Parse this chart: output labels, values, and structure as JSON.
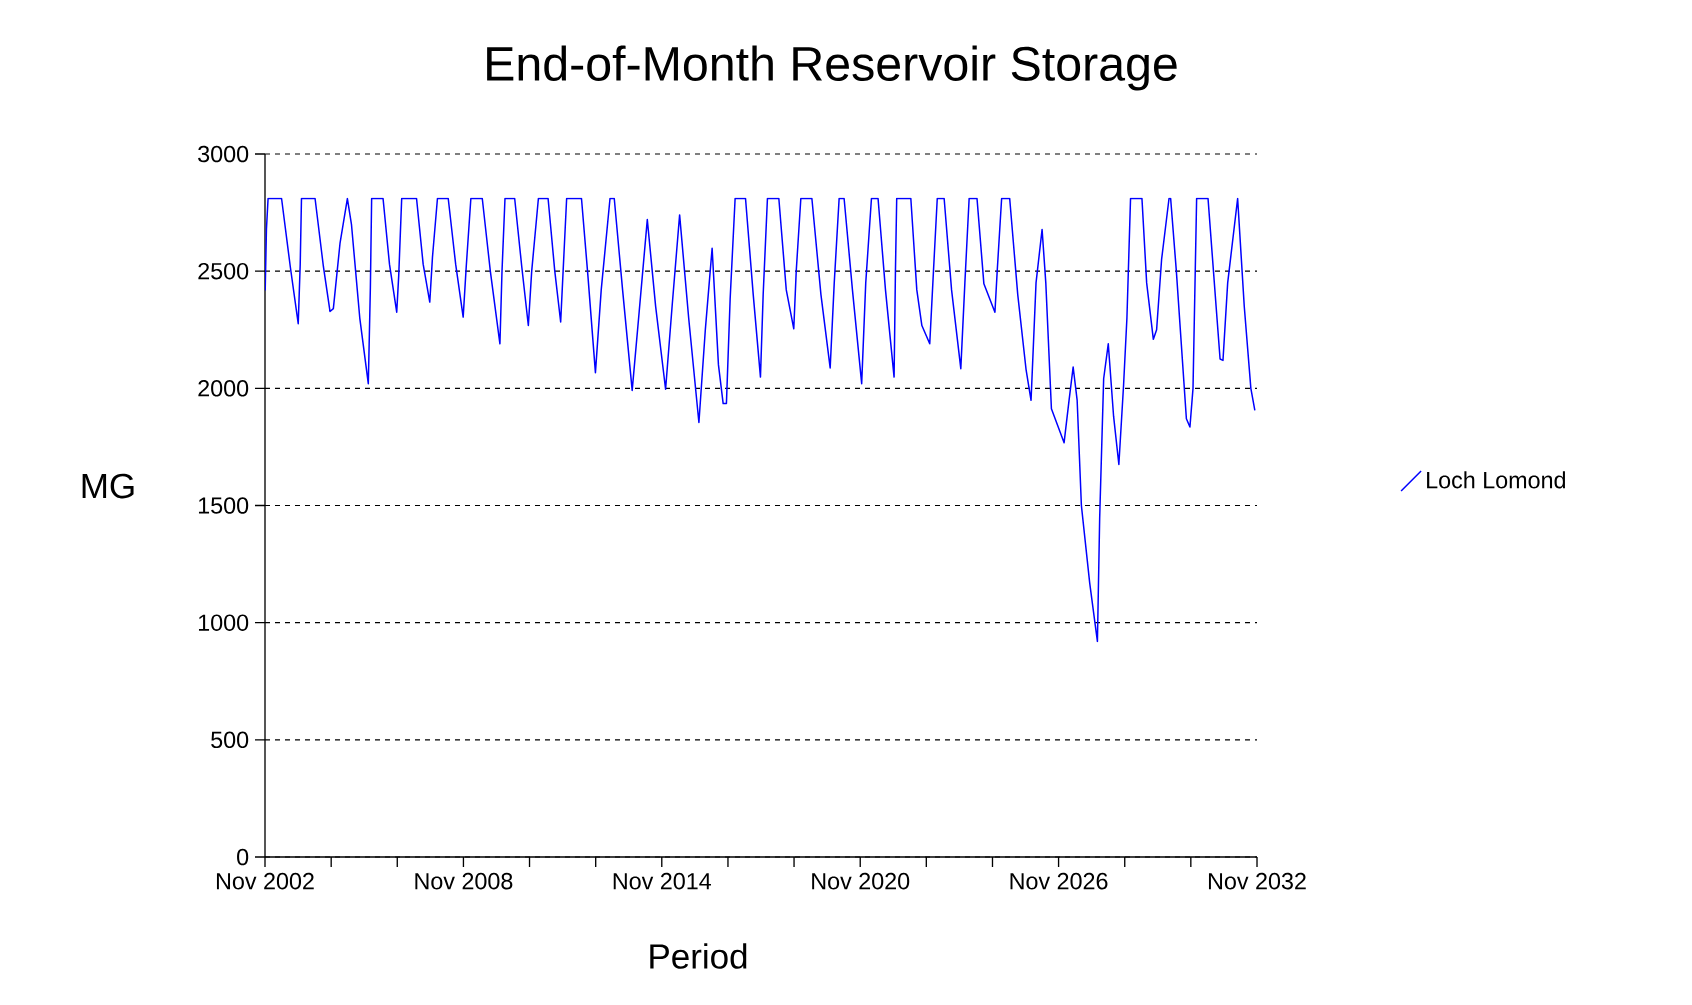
{
  "chart_data": {
    "type": "line",
    "title": "End-of-Month Reservoir Storage",
    "xlabel": "Period",
    "ylabel": "MG",
    "xlim": [
      "2002-11",
      "2032-11"
    ],
    "ylim": [
      0,
      3000
    ],
    "xticks": [
      {
        "value": "2002-11",
        "label": "Nov 2002"
      },
      {
        "value": "2004-11",
        "label": null
      },
      {
        "value": "2006-11",
        "label": null
      },
      {
        "value": "2008-11",
        "label": "Nov 2008"
      },
      {
        "value": "2010-11",
        "label": null
      },
      {
        "value": "2012-11",
        "label": null
      },
      {
        "value": "2014-11",
        "label": "Nov 2014"
      },
      {
        "value": "2016-11",
        "label": null
      },
      {
        "value": "2018-11",
        "label": null
      },
      {
        "value": "2020-11",
        "label": "Nov 2020"
      },
      {
        "value": "2022-11",
        "label": null
      },
      {
        "value": "2024-11",
        "label": null
      },
      {
        "value": "2026-11",
        "label": "Nov 2026"
      },
      {
        "value": "2028-11",
        "label": null
      },
      {
        "value": "2030-11",
        "label": null
      },
      {
        "value": "2032-11",
        "label": "Nov 2032"
      }
    ],
    "yticks": [
      0,
      500,
      1000,
      1500,
      2000,
      2500,
      3000
    ],
    "grid": "y",
    "legend": "right",
    "marker": "none",
    "line_style": "solid",
    "x": [
      "2002-11-03",
      "2002-11-17",
      "2002-12-05",
      "2003-05-03",
      "2003-08-07",
      "2003-11-03",
      "2003-11-25",
      "2003-12-09",
      "2004-05-07",
      "2004-08-07",
      "2004-10-19",
      "2004-11-25",
      "2005-02-07",
      "2005-04-29",
      "2005-06-13",
      "2005-09-13",
      "2005-12-16",
      "2006-01-08",
      "2006-01-22",
      "2006-05-28",
      "2006-08-07",
      "2006-10-26",
      "2006-11-17",
      "2006-12-20",
      "2007-06-02",
      "2007-08-14",
      "2007-10-26",
      "2007-11-25",
      "2008-01-19",
      "2008-05-17",
      "2008-08-07",
      "2008-10-29",
      "2008-12-02",
      "2009-01-22",
      "2009-05-28",
      "2009-08-25",
      "2009-12-09",
      "2010-01-01",
      "2010-02-03",
      "2010-05-21",
      "2010-08-07",
      "2010-10-19",
      "2010-11-25",
      "2011-02-07",
      "2011-05-25",
      "2011-08-07",
      "2011-10-11",
      "2011-11-07",
      "2011-12-16",
      "2012-05-28",
      "2012-08-07",
      "2012-10-29",
      "2013-01-01",
      "2013-04-08",
      "2013-05-25",
      "2013-08-25",
      "2013-12-09",
      "2014-02-25",
      "2014-05-25",
      "2014-08-25",
      "2014-12-13",
      "2015-02-25",
      "2015-05-17",
      "2015-08-25",
      "2015-12-16",
      "2016-02-25",
      "2016-05-10",
      "2016-07-19",
      "2016-09-09",
      "2016-10-15",
      "2016-11-25",
      "2017-01-19",
      "2017-05-14",
      "2017-08-07",
      "2017-10-26",
      "2017-11-25",
      "2018-01-11",
      "2018-05-17",
      "2018-08-07",
      "2018-10-29",
      "2018-11-25",
      "2019-01-15",
      "2019-05-17",
      "2019-08-25",
      "2019-12-05",
      "2020-01-19",
      "2020-03-13",
      "2020-05-07",
      "2020-08-07",
      "2020-11-17",
      "2021-01-01",
      "2021-03-05",
      "2021-05-17",
      "2021-08-07",
      "2021-11-10",
      "2021-11-25",
      "2021-12-09",
      "2022-05-14",
      "2022-07-19",
      "2022-09-13",
      "2022-12-09",
      "2023-01-19",
      "2023-03-02",
      "2023-05-17",
      "2023-08-07",
      "2023-11-17",
      "2024-01-01",
      "2024-02-17",
      "2024-05-14",
      "2024-07-29",
      "2024-11-28",
      "2024-12-23",
      "2025-02-10",
      "2025-05-10",
      "2025-08-07",
      "2025-11-07",
      "2026-01-01",
      "2026-02-25",
      "2026-05-03",
      "2026-06-13",
      "2026-08-14",
      "2027-01-01",
      "2027-02-25",
      "2027-04-11",
      "2027-05-25",
      "2027-07-11",
      "2027-10-11",
      "2028-01-04",
      "2028-01-29",
      "2028-03-13",
      "2028-05-03",
      "2028-07-01",
      "2028-08-28",
      "2028-10-19",
      "2028-11-25",
      "2029-01-04",
      "2029-05-10",
      "2029-07-01",
      "2029-09-13",
      "2029-10-19",
      "2029-12-13",
      "2030-03-05",
      "2030-03-23",
      "2030-05-25",
      "2030-09-13",
      "2030-10-22",
      "2030-11-25",
      "2031-01-04",
      "2031-05-10",
      "2031-08-07",
      "2031-09-20",
      "2031-10-22",
      "2031-12-13",
      "2032-04-01",
      "2032-06-13",
      "2032-08-25",
      "2032-10-08"
    ],
    "series": [
      {
        "name": "Loch Lomond",
        "color": "#0000ff",
        "values": [
          2418,
          2680,
          2810,
          2810,
          2520,
          2276,
          2530,
          2810,
          2810,
          2520,
          2328,
          2340,
          2620,
          2810,
          2700,
          2300,
          2020,
          2430,
          2810,
          2810,
          2530,
          2325,
          2480,
          2810,
          2810,
          2530,
          2368,
          2560,
          2810,
          2810,
          2530,
          2304,
          2520,
          2810,
          2810,
          2500,
          2190,
          2500,
          2810,
          2810,
          2520,
          2268,
          2500,
          2810,
          2810,
          2500,
          2283,
          2500,
          2810,
          2810,
          2480,
          2067,
          2420,
          2810,
          2810,
          2420,
          1991,
          2330,
          2720,
          2350,
          1996,
          2360,
          2740,
          2300,
          1854,
          2250,
          2598,
          2100,
          1935,
          1935,
          2380,
          2810,
          2810,
          2400,
          2048,
          2400,
          2810,
          2810,
          2420,
          2254,
          2500,
          2810,
          2810,
          2400,
          2087,
          2450,
          2810,
          2810,
          2420,
          2020,
          2450,
          2810,
          2810,
          2420,
          2048,
          2500,
          2810,
          2810,
          2420,
          2268,
          2190,
          2500,
          2810,
          2810,
          2420,
          2084,
          2450,
          2810,
          2810,
          2446,
          2325,
          2500,
          2810,
          2810,
          2400,
          2080,
          1949,
          2450,
          2678,
          2450,
          1913,
          1768,
          1950,
          2091,
          1950,
          1500,
          1169,
          920,
          1446,
          2041,
          2190,
          1880,
          1675,
          2013,
          2300,
          2810,
          2810,
          2450,
          2209,
          2250,
          2550,
          2810,
          2810,
          2500,
          1870,
          1835,
          2000,
          2810,
          2810,
          2350,
          2125,
          2119,
          2450,
          2810,
          2350,
          2000,
          1906
        ]
      }
    ]
  }
}
